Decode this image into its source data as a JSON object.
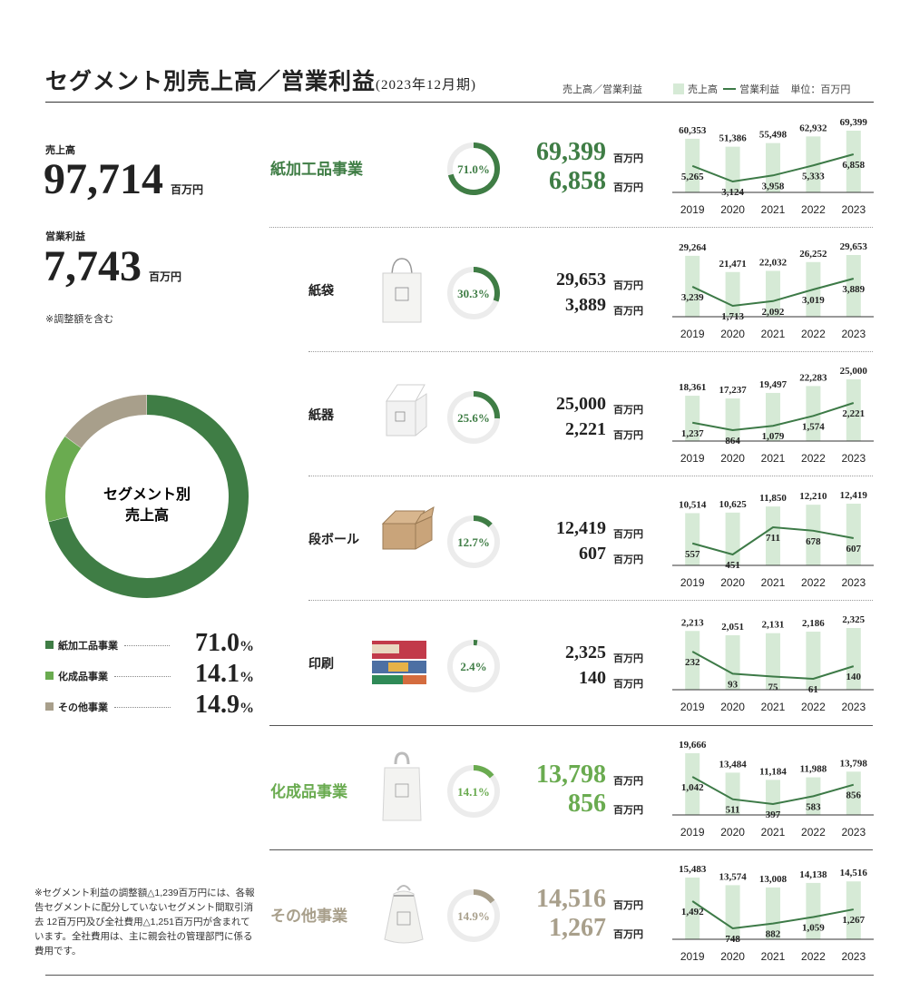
{
  "header": {
    "title": "セグメント別売上高／営業利益",
    "period": "(2023年12月期)",
    "sales_profit_note": "売上高／営業利益",
    "legend_sales": "売上高",
    "legend_profit": "営業利益",
    "unit_note": "単位：百万円"
  },
  "summary": {
    "sales_label": "売上高",
    "sales_value": "97,714",
    "profit_label": "営業利益",
    "profit_value": "7,743",
    "unit": "百万円",
    "adjust_note": "※調整額を含む"
  },
  "donut": {
    "center_line1": "セグメント別",
    "center_line2": "売上高",
    "legend": [
      {
        "name": "紙加工品事業",
        "pct": "71.0",
        "pct_unit": "%",
        "color": "#3f7d45"
      },
      {
        "name": "化成品事業",
        "pct": "14.1",
        "pct_unit": "%",
        "color": "#6aab50"
      },
      {
        "name": "その他事業",
        "pct": "14.9",
        "pct_unit": "%",
        "color": "#a89f8b"
      }
    ]
  },
  "footnote": "※セグメント利益の調整額△1,239百万円には、各報告セグメントに配分していないセグメント間取引消去 12百万円及び全社費用△1,251百万円が含まれています。全社費用は、主に親会社の管理部門に係る費用です。",
  "colors": {
    "green_dark": "#3f7d45",
    "green_light": "#6aab50",
    "beige": "#a89f8b",
    "bar": "#d6ead6",
    "line": "#3d7a47",
    "ring_bg": "#ececec"
  },
  "segments": [
    {
      "name": "紙加工品事業",
      "level": "main",
      "icon": "",
      "pct_label": "71.0%",
      "pct": 71.0,
      "color": "#3f7d45",
      "sales": "69,399",
      "profit": "6,858",
      "unit": "百万円"
    },
    {
      "name": "紙袋",
      "level": "sub",
      "icon": "paper-bag-icon",
      "pct_label": "30.3%",
      "pct": 30.3,
      "color": "#3f7d45",
      "sales": "29,653",
      "profit": "3,889",
      "unit": "百万円"
    },
    {
      "name": "紙器",
      "level": "sub",
      "icon": "paper-box-icon",
      "pct_label": "25.6%",
      "pct": 25.6,
      "color": "#3f7d45",
      "sales": "25,000",
      "profit": "2,221",
      "unit": "百万円"
    },
    {
      "name": "段ボール",
      "level": "sub",
      "icon": "cardboard-box-icon",
      "pct_label": "12.7%",
      "pct": 12.7,
      "color": "#3f7d45",
      "sales": "12,419",
      "profit": "607",
      "unit": "百万円"
    },
    {
      "name": "印刷",
      "level": "sub",
      "icon": "printed-sheets-icon",
      "pct_label": "2.4%",
      "pct": 2.4,
      "color": "#3f7d45",
      "sales": "2,325",
      "profit": "140",
      "unit": "百万円"
    },
    {
      "name": "化成品事業",
      "level": "main",
      "icon": "plastic-bag-icon",
      "pct_label": "14.1%",
      "pct": 14.1,
      "color": "#6aab50",
      "sales": "13,798",
      "profit": "856",
      "unit": "百万円"
    },
    {
      "name": "その他事業",
      "level": "main",
      "icon": "cloth-bag-icon",
      "pct_label": "14.9%",
      "pct": 14.9,
      "color": "#a89f8b",
      "sales": "14,516",
      "profit": "1,267",
      "unit": "百万円"
    }
  ],
  "chart_data": [
    {
      "type": "bar",
      "segment": "紙加工品事業",
      "categories": [
        "2019",
        "2020",
        "2021",
        "2022",
        "2023"
      ],
      "series": [
        {
          "name": "売上高",
          "type": "bar",
          "values": [
            60353,
            51386,
            55498,
            62932,
            69399
          ]
        },
        {
          "name": "営業利益",
          "type": "line",
          "values": [
            5265,
            3124,
            3958,
            5333,
            6858
          ]
        }
      ]
    },
    {
      "type": "bar",
      "segment": "紙袋",
      "categories": [
        "2019",
        "2020",
        "2021",
        "2022",
        "2023"
      ],
      "series": [
        {
          "name": "売上高",
          "type": "bar",
          "values": [
            29264,
            21471,
            22032,
            26252,
            29653
          ]
        },
        {
          "name": "営業利益",
          "type": "line",
          "values": [
            3239,
            1713,
            2092,
            3019,
            3889
          ]
        }
      ]
    },
    {
      "type": "bar",
      "segment": "紙器",
      "categories": [
        "2019",
        "2020",
        "2021",
        "2022",
        "2023"
      ],
      "series": [
        {
          "name": "売上高",
          "type": "bar",
          "values": [
            18361,
            17237,
            19497,
            22283,
            25000
          ]
        },
        {
          "name": "営業利益",
          "type": "line",
          "values": [
            1237,
            864,
            1079,
            1574,
            2221
          ]
        }
      ]
    },
    {
      "type": "bar",
      "segment": "段ボール",
      "categories": [
        "2019",
        "2020",
        "2021",
        "2022",
        "2023"
      ],
      "series": [
        {
          "name": "売上高",
          "type": "bar",
          "values": [
            10514,
            10625,
            11850,
            12210,
            12419
          ]
        },
        {
          "name": "営業利益",
          "type": "line",
          "values": [
            557,
            451,
            711,
            678,
            607
          ]
        }
      ]
    },
    {
      "type": "bar",
      "segment": "印刷",
      "categories": [
        "2019",
        "2020",
        "2021",
        "2022",
        "2023"
      ],
      "series": [
        {
          "name": "売上高",
          "type": "bar",
          "values": [
            2213,
            2051,
            2131,
            2186,
            2325
          ]
        },
        {
          "name": "営業利益",
          "type": "line",
          "values": [
            232,
            93,
            75,
            61,
            140
          ]
        }
      ]
    },
    {
      "type": "bar",
      "segment": "化成品事業",
      "categories": [
        "2019",
        "2020",
        "2021",
        "2022",
        "2023"
      ],
      "series": [
        {
          "name": "売上高",
          "type": "bar",
          "values": [
            19666,
            13484,
            11184,
            11988,
            13798
          ]
        },
        {
          "name": "営業利益",
          "type": "line",
          "values": [
            1042,
            511,
            397,
            583,
            856
          ]
        }
      ]
    },
    {
      "type": "bar",
      "segment": "その他事業",
      "categories": [
        "2019",
        "2020",
        "2021",
        "2022",
        "2023"
      ],
      "series": [
        {
          "name": "売上高",
          "type": "bar",
          "values": [
            15483,
            13574,
            13008,
            14138,
            14516
          ]
        },
        {
          "name": "営業利益",
          "type": "line",
          "values": [
            1492,
            748,
            882,
            1059,
            1267
          ]
        }
      ]
    }
  ]
}
